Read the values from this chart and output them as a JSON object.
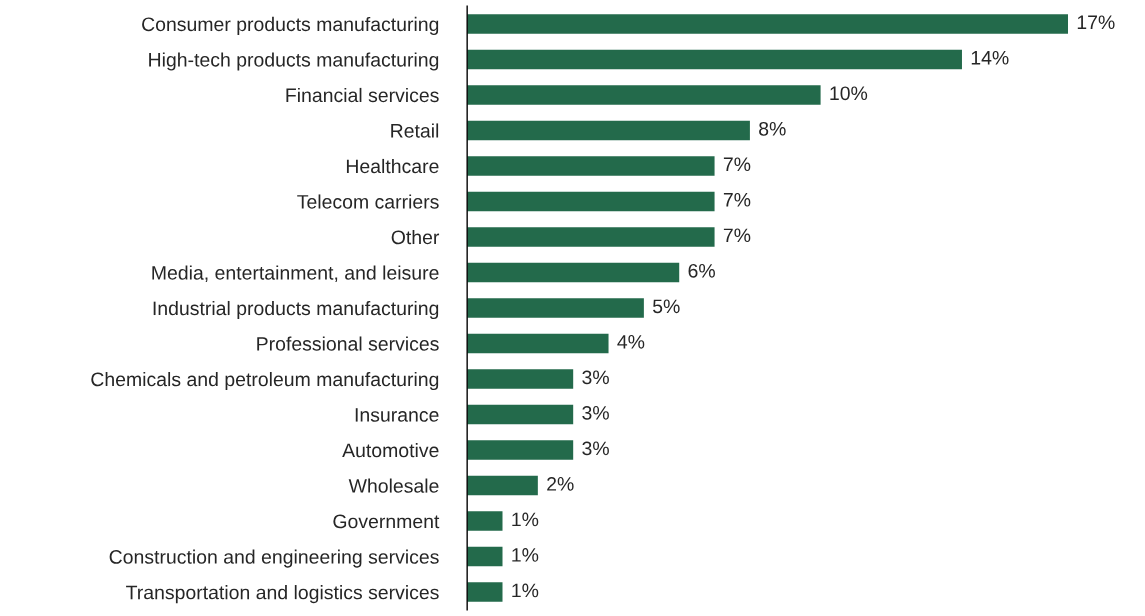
{
  "chart_data": {
    "type": "bar",
    "orientation": "horizontal",
    "categories": [
      "Consumer products manufacturing",
      "High-tech products manufacturing",
      "Financial services",
      "Retail",
      "Healthcare",
      "Telecom carriers",
      "Other",
      "Media, entertainment, and leisure",
      "Industrial products manufacturing",
      "Professional services",
      "Chemicals and petroleum manufacturing",
      "Insurance",
      "Automotive",
      "Wholesale",
      "Government",
      "Construction and engineering services",
      "Transportation and logistics services"
    ],
    "values": [
      17,
      14,
      10,
      8,
      7,
      7,
      7,
      6,
      5,
      4,
      3,
      3,
      3,
      2,
      1,
      1,
      1
    ],
    "value_labels": [
      "17%",
      "14%",
      "10%",
      "8%",
      "7%",
      "7%",
      "7%",
      "6%",
      "5%",
      "4%",
      "3%",
      "3%",
      "3%",
      "2%",
      "1%",
      "1%",
      "1%"
    ],
    "color": "#236a4b",
    "grid": false,
    "legend": false
  }
}
